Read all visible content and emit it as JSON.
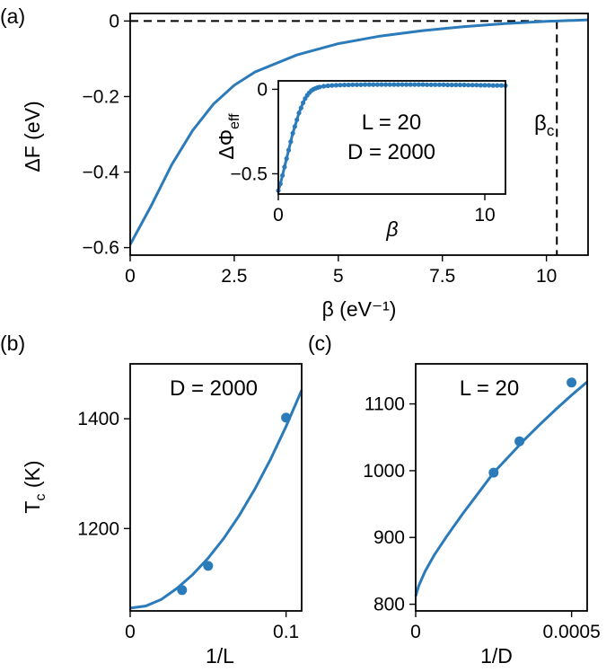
{
  "chart_data": [
    {
      "panel": "(a)",
      "type": "line",
      "xlabel": "β (eV⁻¹)",
      "ylabel": "ΔF (eV)",
      "xlim": [
        0,
        11
      ],
      "ylim": [
        -0.62,
        0.02
      ],
      "xticks": [
        "0",
        "2.5",
        "5",
        "7.5",
        "10"
      ],
      "yticks": [
        "0",
        "-0.2",
        "-0.4",
        "-0.6"
      ],
      "color": "#2b7bba",
      "series": [
        {
          "x": [
            0,
            0.5,
            1,
            1.5,
            2,
            2.5,
            3,
            4,
            5,
            6,
            7,
            8,
            9,
            10,
            10.25,
            11
          ],
          "values": [
            -0.592,
            -0.49,
            -0.38,
            -0.29,
            -0.22,
            -0.17,
            -0.135,
            -0.09,
            -0.06,
            -0.04,
            -0.026,
            -0.015,
            -0.007,
            -0.001,
            0,
            0.003
          ]
        }
      ],
      "reference_lines": [
        {
          "kind": "horizontal",
          "y": 0,
          "style": "dashed"
        },
        {
          "kind": "vertical",
          "x": 10.25,
          "style": "dashed"
        }
      ],
      "annotation": {
        "label": "β",
        "sub": "c"
      },
      "inset": {
        "type": "line",
        "xlabel": "β",
        "ylabel": "ΔΦ",
        "ylabel_sub": "eff",
        "xlim": [
          0,
          11
        ],
        "ylim": [
          -0.62,
          0.05
        ],
        "xticks": [
          "0",
          "10"
        ],
        "yticks": [
          "0",
          "-0.5"
        ],
        "annotation_lines": [
          "L = 20",
          "D = 2000"
        ],
        "series": [
          {
            "x": [
              0,
              0.1,
              0.2,
              0.3,
              0.4,
              0.5,
              0.6,
              0.7,
              0.8,
              0.9,
              1.0,
              1.1,
              1.2,
              1.3,
              1.4,
              1.5,
              1.6,
              1.7,
              1.8,
              1.9,
              2.0,
              2.2,
              2.4,
              2.6,
              2.8,
              3.0,
              3.2,
              3.4,
              3.6,
              3.8,
              4.0,
              4.2,
              4.4,
              4.6,
              4.8,
              5.0,
              5.2,
              5.4,
              5.6,
              5.8,
              6.0,
              6.2,
              6.4,
              6.6,
              6.8,
              7.0,
              7.2,
              7.4,
              7.6,
              7.8,
              8.0,
              8.2,
              8.4,
              8.6,
              8.8,
              9.0,
              9.2,
              9.4,
              9.6,
              9.8,
              10.0,
              10.2,
              10.4,
              10.6,
              10.8,
              11.0
            ],
            "values": [
              -0.6,
              -0.56,
              -0.51,
              -0.46,
              -0.41,
              -0.36,
              -0.31,
              -0.26,
              -0.22,
              -0.18,
              -0.14,
              -0.11,
              -0.08,
              -0.055,
              -0.035,
              -0.02,
              -0.008,
              0.0,
              0.006,
              0.01,
              0.014,
              0.018,
              0.021,
              0.023,
              0.024,
              0.025,
              0.026,
              0.026,
              0.027,
              0.027,
              0.027,
              0.028,
              0.028,
              0.028,
              0.028,
              0.028,
              0.028,
              0.028,
              0.028,
              0.028,
              0.028,
              0.028,
              0.028,
              0.028,
              0.028,
              0.028,
              0.027,
              0.027,
              0.027,
              0.027,
              0.027,
              0.026,
              0.026,
              0.026,
              0.026,
              0.026,
              0.025,
              0.025,
              0.025,
              0.024,
              0.024,
              0.024,
              0.023,
              0.023,
              0.023,
              0.022
            ]
          }
        ]
      }
    },
    {
      "panel": "(b)",
      "type": "line",
      "xlabel": "1/L",
      "ylabel": "T",
      "ylabel_sub": "c",
      "ylabel_unit": "(K)",
      "xlim": [
        0,
        0.11
      ],
      "ylim": [
        1050,
        1500
      ],
      "xticks": [
        "0",
        "0.1"
      ],
      "yticks": [
        "1400",
        "1200"
      ],
      "annotation_lines": [
        "D = 2000"
      ],
      "series": [
        {
          "x": [
            0,
            0.01,
            0.02,
            0.03,
            0.04,
            0.05,
            0.06,
            0.07,
            0.08,
            0.09,
            0.1,
            0.11
          ],
          "values": [
            1055,
            1059,
            1071,
            1091,
            1116,
            1146,
            1182,
            1224,
            1272,
            1326,
            1386,
            1452
          ]
        }
      ],
      "markers": {
        "x": [
          0.0333,
          0.05,
          0.1
        ],
        "values": [
          1088,
          1132,
          1402
        ]
      }
    },
    {
      "panel": "(c)",
      "type": "line",
      "xlabel": "1/D",
      "xlim": [
        0,
        0.00055
      ],
      "ylim": [
        790,
        1160
      ],
      "xticks": [
        "0",
        "0.0005"
      ],
      "yticks": [
        "1100",
        "1000",
        "900",
        "800"
      ],
      "annotation_lines": [
        "L = 20"
      ],
      "series": [
        {
          "x": [
            0,
            1e-05,
            3e-05,
            6e-05,
            0.0001,
            0.00015,
            0.0002,
            0.00025,
            0.0003,
            0.00035,
            0.0004,
            0.00045,
            0.0005,
            0.00055
          ],
          "values": [
            812,
            828,
            849,
            874,
            902,
            935,
            966,
            997,
            1022,
            1047,
            1070,
            1092,
            1113,
            1133
          ]
        }
      ],
      "markers": {
        "x": [
          0.00025,
          0.000333,
          0.0005
        ],
        "values": [
          997,
          1044,
          1132
        ]
      }
    }
  ]
}
